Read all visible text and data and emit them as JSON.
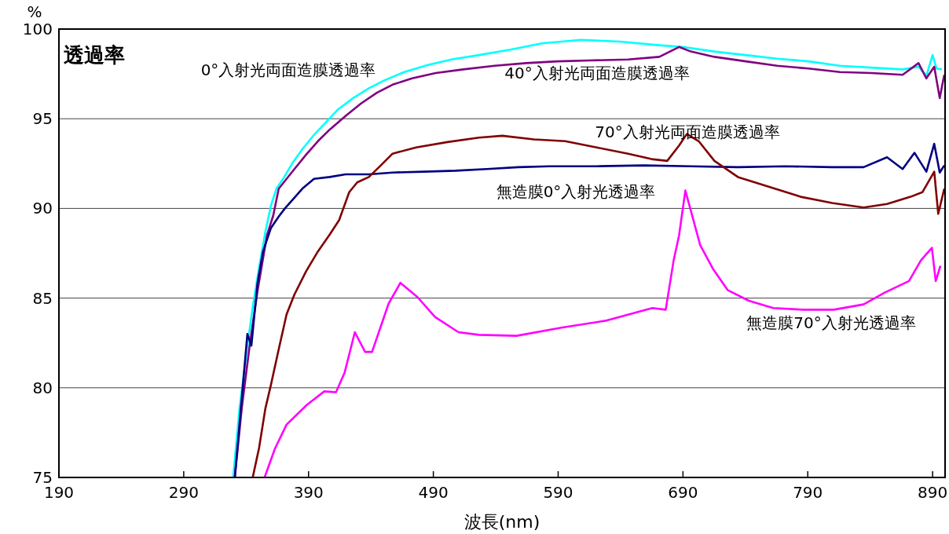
{
  "chart_data": {
    "type": "line",
    "title": "透過率",
    "xlabel": "波長(nm)",
    "ylabel": "%",
    "xlim": [
      190,
      900
    ],
    "ylim": [
      75,
      100
    ],
    "xticks": [
      190,
      290,
      390,
      490,
      590,
      690,
      790,
      890
    ],
    "yticks": [
      75,
      80,
      85,
      90,
      95,
      100
    ],
    "grid": "y",
    "series": [
      {
        "name": "0°入射光両面造膜透過率",
        "color": "#00ffff",
        "x": [
          329.6,
          334.7,
          341.0,
          345.3,
          350.4,
          355.4,
          359.8,
          364.2,
          370.5,
          376.8,
          385.0,
          394.4,
          403.8,
          413.3,
          425.8,
          438.4,
          451.0,
          466.7,
          485.6,
          504.5,
          526.5,
          551.6,
          576.8,
          608.2,
          639.7,
          671.1,
          690.0,
          715.2,
          740.3,
          765.5,
          790.6,
          815.8,
          841.0,
          866.0,
          878.7,
          885.0,
          890.0,
          893.1,
          897.5
        ],
        "values": [
          75.0,
          78.85,
          82.35,
          84.5,
          86.7,
          88.7,
          90.15,
          91.1,
          91.75,
          92.5,
          93.3,
          94.1,
          94.8,
          95.5,
          96.15,
          96.7,
          97.15,
          97.6,
          98.0,
          98.3,
          98.55,
          98.85,
          99.2,
          99.4,
          99.3,
          99.1,
          99.0,
          98.75,
          98.55,
          98.35,
          98.2,
          97.95,
          97.85,
          97.75,
          97.9,
          97.4,
          98.55,
          97.8,
          97.75
        ]
      },
      {
        "name": "40°入射光両面造膜透過率",
        "color": "#800080",
        "x": [
          330.9,
          336.5,
          342.8,
          349.1,
          356.7,
          361.7,
          366.1,
          372.4,
          378.7,
          388.1,
          397.5,
          407.0,
          419.6,
          432.1,
          444.7,
          457.3,
          473.0,
          491.9,
          513.9,
          539.1,
          564.2,
          589.4,
          614.5,
          646.0,
          671.1,
          686.8,
          696.3,
          715.2,
          740.3,
          765.5,
          790.6,
          815.8,
          841.0,
          866.0,
          878.7,
          885.0,
          891.3,
          895.7,
          899.4
        ],
        "values": [
          75.0,
          78.85,
          82.35,
          85.4,
          88.5,
          89.6,
          91.1,
          91.65,
          92.2,
          93.0,
          93.75,
          94.4,
          95.15,
          95.85,
          96.45,
          96.9,
          97.25,
          97.55,
          97.75,
          97.95,
          98.1,
          98.2,
          98.25,
          98.3,
          98.45,
          99.0,
          98.75,
          98.45,
          98.2,
          97.95,
          97.8,
          97.6,
          97.55,
          97.45,
          98.1,
          97.25,
          97.9,
          96.15,
          97.45
        ]
      },
      {
        "name": "無造膜0°入射光透過率",
        "color": "#000080",
        "x": [
          330.9,
          334.7,
          339.1,
          341.0,
          344.2,
          349.1,
          353.5,
          359.8,
          366.1,
          371.1,
          376.8,
          385.0,
          394.4,
          407.0,
          419.6,
          438.4,
          457.3,
          482.5,
          507.7,
          532.9,
          558.0,
          583.1,
          620.8,
          658.6,
          696.3,
          734.0,
          771.7,
          809.5,
          834.7,
          853.5,
          866.0,
          875.5,
          885.0,
          891.3,
          895.7,
          899.4
        ],
        "values": [
          75.0,
          78.0,
          81.5,
          83.0,
          82.35,
          85.85,
          87.6,
          88.9,
          89.55,
          90.0,
          90.45,
          91.1,
          91.65,
          91.75,
          91.9,
          91.9,
          92.0,
          92.05,
          92.1,
          92.2,
          92.3,
          92.35,
          92.35,
          92.4,
          92.35,
          92.3,
          92.35,
          92.3,
          92.3,
          92.85,
          92.2,
          93.1,
          92.05,
          93.6,
          92.0,
          92.4
        ]
      },
      {
        "name": "70°入射光両面造膜透過率",
        "color": "#800000",
        "x": [
          345.3,
          350.4,
          355.4,
          359.8,
          366.1,
          372.4,
          378.7,
          388.1,
          397.5,
          407.0,
          414.5,
          422.6,
          429.0,
          438.4,
          447.9,
          457.3,
          476.2,
          501.4,
          526.5,
          545.3,
          570.5,
          595.6,
          620.8,
          646.0,
          664.8,
          677.4,
          686.8,
          693.1,
          702.6,
          715.2,
          734.0,
          759.2,
          784.3,
          809.5,
          834.7,
          853.5,
          872.3,
          881.8,
          891.3,
          894.5,
          899.4
        ],
        "values": [
          75.0,
          76.65,
          78.85,
          80.15,
          82.15,
          84.1,
          85.2,
          86.5,
          87.6,
          88.55,
          89.35,
          90.9,
          91.45,
          91.75,
          92.4,
          93.05,
          93.4,
          93.7,
          93.95,
          94.05,
          93.85,
          93.75,
          93.4,
          93.05,
          92.75,
          92.65,
          93.5,
          94.15,
          93.75,
          92.65,
          91.75,
          91.2,
          90.65,
          90.3,
          90.05,
          90.25,
          90.65,
          90.9,
          92.05,
          89.7,
          91.1
        ]
      },
      {
        "name": "無造膜70°入射光透過率",
        "color": "#ff00ff",
        "x": [
          354.8,
          363.0,
          372.4,
          388.7,
          402.6,
          412.0,
          418.9,
          427.1,
          435.3,
          440.9,
          454.2,
          463.6,
          477.4,
          491.3,
          510.1,
          526.5,
          556.7,
          592.5,
          629.0,
          665.5,
          676.2,
          682.5,
          686.9,
          691.9,
          703.8,
          713.9,
          725.8,
          742.8,
          762.3,
          786.2,
          810.8,
          834.7,
          851.6,
          871.1,
          880.6,
          889.4,
          892.5,
          896.3
        ],
        "values": [
          75.0,
          76.6,
          77.95,
          79.05,
          79.8,
          79.75,
          80.85,
          83.1,
          82.0,
          82.0,
          84.7,
          85.85,
          85.05,
          83.95,
          83.1,
          82.95,
          82.9,
          83.35,
          83.75,
          84.45,
          84.35,
          87.1,
          88.5,
          91.0,
          87.95,
          86.65,
          85.45,
          84.85,
          84.45,
          84.35,
          84.35,
          84.65,
          85.3,
          85.95,
          87.1,
          87.8,
          85.95,
          86.8
        ]
      }
    ]
  }
}
